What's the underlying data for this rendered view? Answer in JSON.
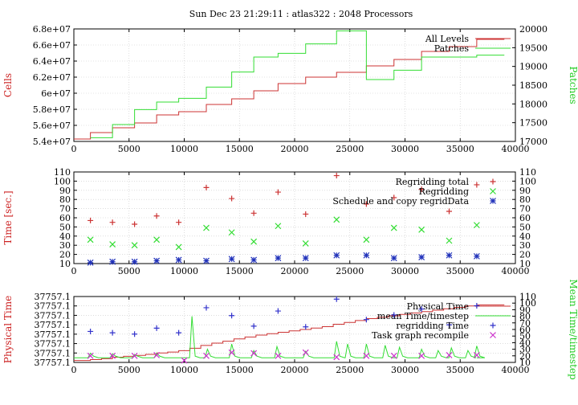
{
  "figure": {
    "title": "Sun Dec 23 21:29:11 : atlas322 : 2048 Processors"
  },
  "chart_data": [
    {
      "type": "line",
      "ylabel": "Cells",
      "y2label": "Patches",
      "xlim": [
        0,
        40000
      ],
      "ylim": [
        54000000.0,
        68000000.0
      ],
      "y2lim": [
        17000,
        20000
      ],
      "xticks": [
        "0",
        "5000",
        "10000",
        "15000",
        "20000",
        "25000",
        "30000",
        "35000",
        "40000"
      ],
      "yticks": [
        "5.4e+07",
        "5.6e+07",
        "5.8e+07",
        "6e+07",
        "6.2e+07",
        "6.4e+07",
        "6.6e+07",
        "6.8e+07"
      ],
      "y2ticks": [
        "17000",
        "17500",
        "18000",
        "18500",
        "19000",
        "19500",
        "20000"
      ],
      "grid": true,
      "legend_position": "top-right",
      "series": [
        {
          "name": "All Levels",
          "axis": "left",
          "color": "#cc3333",
          "step": true,
          "x": [
            0,
            1500,
            3500,
            5500,
            7500,
            9500,
            12000,
            14300,
            16300,
            18500,
            21000,
            23800,
            26500,
            29000,
            31500,
            34000,
            36500
          ],
          "y": [
            54300000.0,
            55100000.0,
            55700000.0,
            56300000.0,
            57300000.0,
            57700000.0,
            58600000.0,
            59300000.0,
            60300000.0,
            61200000.0,
            62000000.0,
            62600000.0,
            63400000.0,
            64200000.0,
            65200000.0,
            65800000.0,
            66700000.0
          ]
        },
        {
          "name": "Patches",
          "axis": "right",
          "color": "#33dd33",
          "step": true,
          "x": [
            1500,
            3500,
            5500,
            7500,
            9500,
            12000,
            14300,
            16300,
            18500,
            21000,
            23800,
            26500,
            29000,
            31500,
            34000,
            36500
          ],
          "y": [
            17100,
            17450,
            17850,
            18050,
            18150,
            18450,
            18850,
            19250,
            19350,
            19600,
            19950,
            18650,
            18900,
            19250,
            19250,
            19300
          ]
        }
      ]
    },
    {
      "type": "scatter",
      "ylabel": "Time [sec.]",
      "xlim": [
        0,
        40000
      ],
      "ylim": [
        10,
        110
      ],
      "y2lim": [
        10,
        110
      ],
      "xticks": [
        "0",
        "5000",
        "10000",
        "15000",
        "20000",
        "25000",
        "30000",
        "35000",
        "40000"
      ],
      "yticks": [
        "10",
        "20",
        "30",
        "40",
        "50",
        "60",
        "70",
        "80",
        "90",
        "100",
        "110"
      ],
      "y2ticks": [
        "10",
        "20",
        "30",
        "40",
        "50",
        "60",
        "70",
        "80",
        "90",
        "100",
        "110"
      ],
      "grid": true,
      "legend_position": "top-right",
      "series": [
        {
          "name": "Regridding total",
          "marker": "plus",
          "color": "#cc3333",
          "x": [
            1500,
            3500,
            5500,
            7500,
            9500,
            12000,
            14300,
            16300,
            18500,
            21000,
            23800,
            26500,
            29000,
            31500,
            34000,
            36500
          ],
          "y": [
            57,
            55,
            53,
            62,
            55,
            93,
            81,
            65,
            88,
            64,
            106,
            75,
            82,
            91,
            67,
            96
          ]
        },
        {
          "name": "Regridding",
          "marker": "x",
          "color": "#33dd33",
          "x": [
            1500,
            3500,
            5500,
            7500,
            9500,
            12000,
            14300,
            16300,
            18500,
            21000,
            23800,
            26500,
            29000,
            31500,
            34000,
            36500
          ],
          "y": [
            36,
            31,
            30,
            36,
            28,
            49,
            44,
            34,
            51,
            32,
            58,
            36,
            49,
            47,
            35,
            52
          ]
        },
        {
          "name": "Schedule and copy regridData",
          "marker": "star",
          "color": "#2233bb",
          "x": [
            1500,
            3500,
            5500,
            7500,
            9500,
            12000,
            14300,
            16300,
            18500,
            21000,
            23800,
            26500,
            29000,
            31500,
            34000,
            36500
          ],
          "y": [
            11,
            12,
            12,
            13,
            14,
            13,
            15,
            14,
            16,
            16,
            19,
            19,
            16,
            17,
            19,
            18
          ]
        }
      ]
    },
    {
      "type": "line",
      "ylabel": "Physical Time",
      "y2label": "Mean Time/timestep",
      "xlim": [
        0,
        40000
      ],
      "ylim": [
        0,
        7
      ],
      "y2lim": [
        10,
        110
      ],
      "xticks": [
        "0",
        "5000",
        "10000",
        "15000",
        "20000",
        "25000",
        "30000",
        "35000",
        "40000"
      ],
      "yticks": [
        "37757.1",
        "37757.1",
        "37757.1",
        "37757.1",
        "37757.1",
        "37757.1",
        "37757.1",
        "37757.1"
      ],
      "y2ticks": [
        "10",
        "20",
        "30",
        "40",
        "50",
        "60",
        "70",
        "80",
        "90",
        "100",
        "110"
      ],
      "grid": true,
      "legend_position": "top-right",
      "series": [
        {
          "name": "Physical Time",
          "axis": "left",
          "color": "#cc3333",
          "step": true,
          "x": [
            0,
            1500,
            2500,
            3500,
            4500,
            5500,
            6500,
            7500,
            8500,
            9500,
            10500,
            11500,
            12500,
            13500,
            14500,
            15500,
            16500,
            17500,
            18500,
            19500,
            20500,
            21500,
            22500,
            23500,
            24500,
            25500,
            26500,
            27500,
            28500,
            29500,
            30500,
            31500,
            32500,
            33500,
            34500,
            35500,
            36500
          ],
          "y": [
            0.2,
            0.3,
            0.4,
            0.55,
            0.65,
            0.75,
            0.85,
            1.0,
            1.1,
            1.25,
            1.5,
            1.8,
            2.05,
            2.25,
            2.5,
            2.7,
            2.9,
            3.05,
            3.2,
            3.35,
            3.5,
            3.65,
            3.8,
            4.05,
            4.25,
            4.45,
            4.65,
            4.8,
            4.95,
            5.1,
            5.25,
            5.4,
            5.55,
            5.7,
            5.85,
            6.0,
            6.1
          ]
        },
        {
          "name": "mean Time/timestep",
          "axis": "right",
          "color": "#33dd33",
          "spiky": true,
          "baseline": 17,
          "base_x": [
            0,
            36500
          ],
          "spikes_x": [
            1500,
            3500,
            5500,
            7500,
            10700,
            12100,
            14300,
            16300,
            18400,
            21000,
            23800,
            24800,
            26500,
            28200,
            29500,
            31500,
            33000,
            34200,
            35700,
            36500
          ],
          "spikes_y": [
            24,
            23,
            22,
            24,
            80,
            30,
            38,
            28,
            34,
            27,
            42,
            38,
            38,
            36,
            33,
            30,
            28,
            32,
            28,
            35
          ]
        },
        {
          "name": "regridding Time",
          "marker": "plus",
          "axis": "right",
          "color": "#3333cc",
          "x": [
            1500,
            3500,
            5500,
            7500,
            9500,
            12000,
            14300,
            16300,
            18500,
            21000,
            23800,
            26500,
            29000,
            31500,
            34000,
            36500
          ],
          "y": [
            57,
            55,
            53,
            62,
            55,
            93,
            81,
            65,
            88,
            64,
            106,
            75,
            82,
            91,
            67,
            96
          ]
        },
        {
          "name": "Task graph recompile",
          "marker": "x",
          "axis": "right",
          "color": "#cc33cc",
          "x": [
            1500,
            3500,
            5500,
            7500,
            10000,
            12000,
            14300,
            16300,
            18500,
            21000,
            23800,
            26500,
            29000,
            31500,
            34000,
            36500
          ],
          "y": [
            20,
            20,
            20,
            21,
            13,
            20,
            25,
            24,
            20,
            25,
            18,
            20,
            20,
            20,
            21,
            21
          ]
        }
      ]
    }
  ]
}
